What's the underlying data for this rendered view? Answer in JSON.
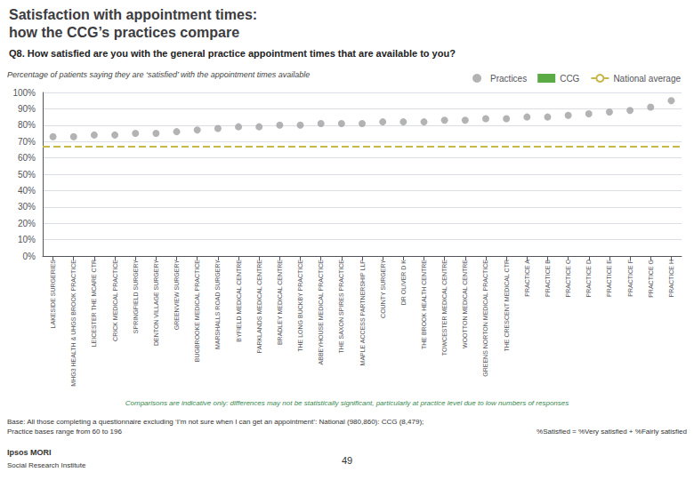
{
  "chart_data": {
    "type": "scatter",
    "title": "Satisfaction with appointment times:\nhow the CCG’s practices compare",
    "subtitle": "Q8. How satisfied are you with the general practice appointment times that are available to you?",
    "y_label": "Percentage of patients saying they are ‘satisfied’ with the appointment times available",
    "categories": [
      "LAKESIDE SURGERIES",
      "MHG3 HEALTH & UHGS BROOK PRACTICE",
      "LEICESTER THE MCARE CTR",
      "CRICK MEDICAL PRACTICE",
      "SPRINGFIELD SURGERY",
      "DENTON VILLAGE SURGERY",
      "GREENVIEW SURGERY",
      "BUGBROOKE MEDICAL PRACTICE",
      "MARSHALLS ROAD SURGERY",
      "BYFIELD MEDICAL CENTRE",
      "PARKLANDS MEDICAL CENTRE",
      "BRADLEY MEDICAL CENTRE",
      "THE LONG BUCKBY PRACTICE",
      "ABBEYHOUSE MEDICAL PRACTICE",
      "THE SAXON SPIRES PRACTICE",
      "MAPLE ACCESS PARTNERSHIP LLP",
      "COUNTY SURGERY",
      "DR OLIVER D K",
      "THE BROOK HEALTH CENTRE",
      "TOWCESTER MEDICAL CENTRE",
      "WOOTTON MEDICAL CENTRE",
      "GREENS NORTON MEDICAL PRACTICE",
      "THE CRESCENT MEDICAL CTR",
      "PRACTICE A",
      "PRACTICE B",
      "PRACTICE C",
      "PRACTICE D",
      "PRACTICE E",
      "PRACTICE F",
      "PRACTICE G",
      "PRACTICE H"
    ],
    "series": [
      {
        "name": "Practices",
        "color": "#A0A0A0",
        "marker": "circle",
        "values": [
          73,
          73,
          74,
          74,
          75,
          75,
          76,
          77,
          78,
          79,
          79,
          80,
          80,
          81,
          81,
          81,
          82,
          82,
          82,
          83,
          83,
          84,
          84,
          85,
          85,
          86,
          87,
          88,
          89,
          91,
          95
        ]
      }
    ],
    "legend_only": [
      {
        "name": "CCG",
        "color": "#5AAA46",
        "marker": "square"
      }
    ],
    "reference_line": {
      "name": "National average",
      "value": 67,
      "color": "#C8B84A",
      "line_style": "dashed"
    },
    "ylim": [
      0,
      100
    ],
    "yticks": [
      {
        "value": 0,
        "label": "0%"
      },
      {
        "value": 10,
        "label": "10%"
      },
      {
        "value": 20,
        "label": "20%"
      },
      {
        "value": 30,
        "label": "30%"
      },
      {
        "value": 40,
        "label": "40%"
      },
      {
        "value": 50,
        "label": "50%"
      },
      {
        "value": 60,
        "label": "60%"
      },
      {
        "value": 70,
        "label": "70%"
      },
      {
        "value": 80,
        "label": "80%"
      },
      {
        "value": 90,
        "label": "90%"
      },
      {
        "value": 100,
        "label": "100%"
      }
    ],
    "grid": true,
    "legend": "upper right",
    "annotations": [
      "Comparisons are indicative only: differences may not be statistically significant, particularly at practice level due to low numbers of responses",
      "Base: All those completing a questionnaire excluding ‘I’m not sure when I can get an appointment’: National (980,860): CCG (8,479);\nPractice bases range from 60 to 196",
      "%Satisfied = %Very satisfied + %Fairly satisfied",
      "Ipsos MORI",
      "Social Research Institute",
      "49"
    ]
  }
}
